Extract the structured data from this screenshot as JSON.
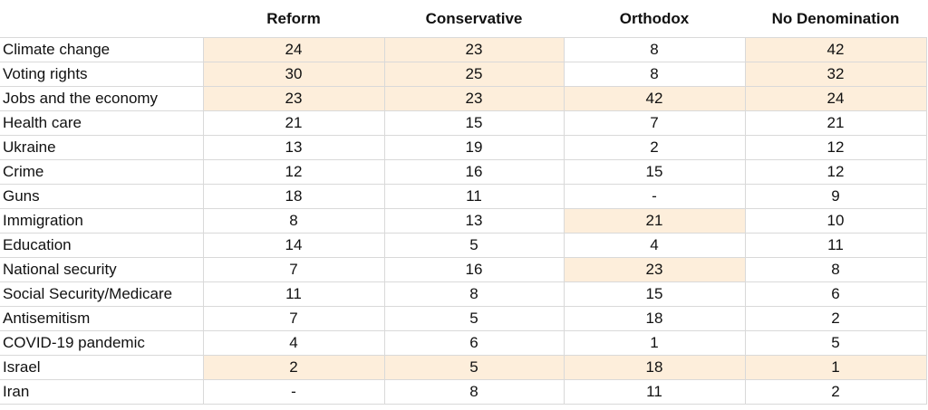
{
  "chart_data": {
    "type": "table",
    "columns": [
      "",
      "Reform",
      "Conservative",
      "Orthodox",
      "No Denomination"
    ],
    "highlight_color": "#fdeedb",
    "rows": [
      {
        "label": "Climate change",
        "values": [
          "24",
          "23",
          "8",
          "42"
        ],
        "highlight": [
          true,
          true,
          false,
          true
        ]
      },
      {
        "label": "Voting rights",
        "values": [
          "30",
          "25",
          "8",
          "32"
        ],
        "highlight": [
          true,
          true,
          false,
          true
        ]
      },
      {
        "label": "Jobs and the economy",
        "values": [
          "23",
          "23",
          "42",
          "24"
        ],
        "highlight": [
          true,
          true,
          true,
          true
        ]
      },
      {
        "label": "Health care",
        "values": [
          "21",
          "15",
          "7",
          "21"
        ],
        "highlight": [
          false,
          false,
          false,
          false
        ]
      },
      {
        "label": "Ukraine",
        "values": [
          "13",
          "19",
          "2",
          "12"
        ],
        "highlight": [
          false,
          false,
          false,
          false
        ]
      },
      {
        "label": "Crime",
        "values": [
          "12",
          "16",
          "15",
          "12"
        ],
        "highlight": [
          false,
          false,
          false,
          false
        ]
      },
      {
        "label": "Guns",
        "values": [
          "18",
          "11",
          "-",
          "9"
        ],
        "highlight": [
          false,
          false,
          false,
          false
        ]
      },
      {
        "label": "Immigration",
        "values": [
          "8",
          "13",
          "21",
          "10"
        ],
        "highlight": [
          false,
          false,
          true,
          false
        ]
      },
      {
        "label": "Education",
        "values": [
          "14",
          "5",
          "4",
          "11"
        ],
        "highlight": [
          false,
          false,
          false,
          false
        ]
      },
      {
        "label": "National security",
        "values": [
          "7",
          "16",
          "23",
          "8"
        ],
        "highlight": [
          false,
          false,
          true,
          false
        ]
      },
      {
        "label": "Social Security/Medicare",
        "values": [
          "11",
          "8",
          "15",
          "6"
        ],
        "highlight": [
          false,
          false,
          false,
          false
        ]
      },
      {
        "label": "Antisemitism",
        "values": [
          "7",
          "5",
          "18",
          "2"
        ],
        "highlight": [
          false,
          false,
          false,
          false
        ]
      },
      {
        "label": "COVID-19 pandemic",
        "values": [
          "4",
          "6",
          "1",
          "5"
        ],
        "highlight": [
          false,
          false,
          false,
          false
        ]
      },
      {
        "label": "Israel",
        "values": [
          "2",
          "5",
          "18",
          "1"
        ],
        "highlight": [
          true,
          true,
          true,
          true
        ]
      },
      {
        "label": "Iran",
        "values": [
          "-",
          "8",
          "11",
          "2"
        ],
        "highlight": [
          false,
          false,
          false,
          false
        ]
      }
    ]
  }
}
